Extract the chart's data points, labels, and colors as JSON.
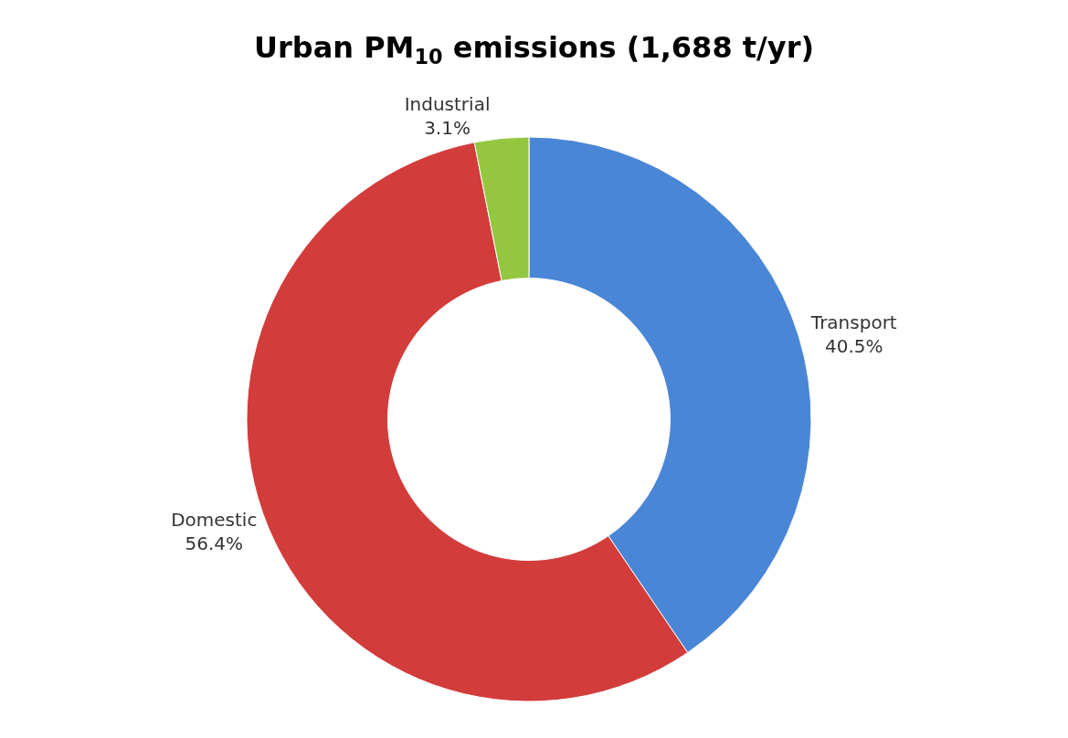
{
  "chart_data": {
    "type": "donut",
    "title": "Urban PM$_{10}$ emissions (1,688 t/yr)",
    "categories": [
      "Transport",
      "Domestic",
      "Industrial"
    ],
    "values": [
      40.5,
      56.4,
      3.1
    ],
    "value_labels": [
      "40.5%",
      "56.4%",
      "3.1%"
    ],
    "colors": [
      "#4a86d6",
      "#d23c3a",
      "#94c640"
    ],
    "legend": false
  }
}
